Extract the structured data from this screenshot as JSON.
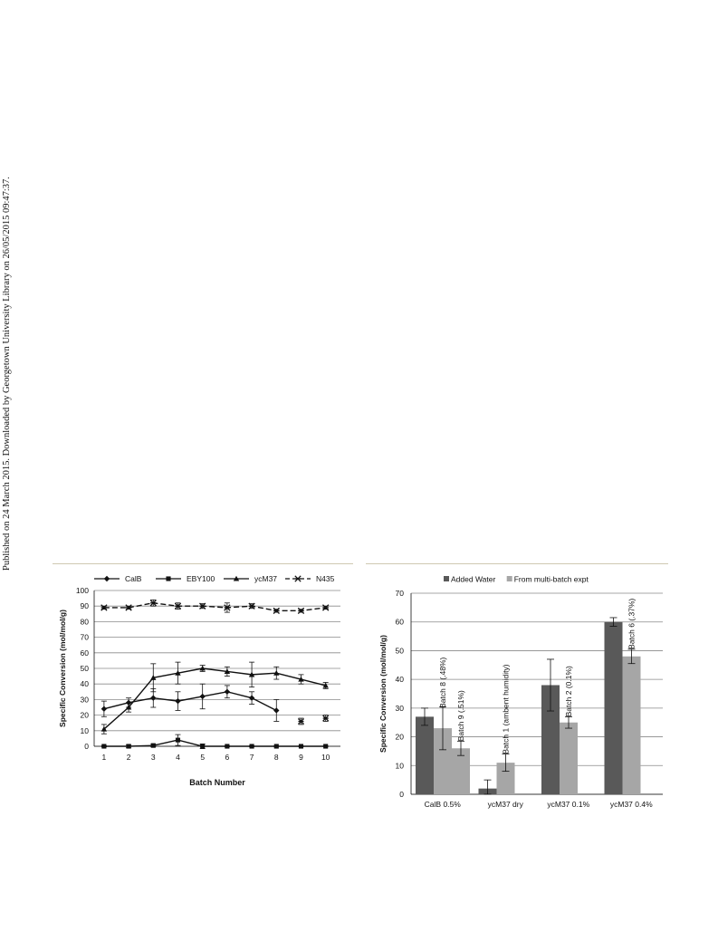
{
  "side_note": "Published on 24 March 2015. Downloaded by Georgetown University Library on 26/05/2015 09:47:37.",
  "chart_data": [
    {
      "type": "line",
      "xlabel": "Batch Number",
      "ylabel": "Specific Conversion (mol/mol/g)",
      "x": [
        1,
        2,
        3,
        4,
        5,
        6,
        7,
        8,
        9,
        10
      ],
      "xlim": [
        0.6,
        10.6
      ],
      "ylim": [
        0,
        100
      ],
      "yticks": [
        0,
        10,
        20,
        30,
        40,
        50,
        60,
        70,
        80,
        90,
        100
      ],
      "grid": "horizontal",
      "legend_position": "top",
      "series": [
        {
          "name": "CalB",
          "marker": "diamond",
          "line": "solid",
          "values": [
            24,
            28,
            31,
            29,
            32,
            35,
            31,
            23,
            null,
            null
          ],
          "errors": [
            5,
            3,
            6,
            6,
            8,
            4,
            4,
            7,
            null,
            null
          ]
        },
        {
          "name": "EBY100",
          "marker": "square",
          "line": "solid",
          "values": [
            0,
            0,
            0.5,
            4,
            0,
            0,
            0,
            0,
            0,
            0
          ],
          "errors": [
            0.4,
            1,
            0.8,
            3.5,
            1.5,
            0.3,
            0.3,
            0.2,
            0.2,
            0.2
          ]
        },
        {
          "name": "ycM37",
          "marker": "triangle",
          "line": "solid",
          "values": [
            11,
            25,
            44,
            47,
            50,
            48,
            46,
            47,
            43,
            39
          ],
          "errors": [
            3,
            3,
            9,
            7,
            2,
            3,
            8,
            4,
            3,
            2
          ]
        },
        {
          "name": "N435",
          "marker": "x-star",
          "line": "dashed",
          "values": [
            89,
            89,
            92,
            90,
            90,
            89,
            90,
            87,
            87,
            89
          ],
          "errors": [
            1,
            1,
            2,
            2,
            1.5,
            3,
            1.5,
            1,
            1,
            1
          ]
        }
      ],
      "extra_points": [
        {
          "x": 9,
          "y": 16,
          "error": 2
        },
        {
          "x": 10,
          "y": 18,
          "error": 2
        }
      ]
    },
    {
      "type": "bar",
      "ylabel": "Specific Conversion (mol/mol/g)",
      "categories": [
        "CalB 0.5%",
        "ycM37 dry",
        "ycM37 0.1%",
        "ycM37 0.4%"
      ],
      "ylim": [
        0,
        70
      ],
      "yticks": [
        0,
        10,
        20,
        30,
        40,
        50,
        60,
        70
      ],
      "grid": "horizontal",
      "legend_position": "top",
      "series": [
        {
          "name": "Added Water",
          "color": "#595959",
          "values": [
            27,
            2,
            38,
            60
          ],
          "errors": [
            3,
            3,
            9,
            1.5
          ]
        },
        {
          "name": "From multi-batch expt",
          "color": "#a6a6a6",
          "values": [
            23,
            11,
            25,
            48
          ],
          "errors": [
            7.5,
            3,
            2,
            2.5
          ]
        }
      ],
      "extra_bar": {
        "category_index": 0,
        "value": 16,
        "error": 2.5
      },
      "annotations": [
        {
          "text": "Batch 8 (.48%)",
          "category_index": 0,
          "slot": 1,
          "y": 30
        },
        {
          "text": "Batch 9 (.51%)",
          "category_index": 0,
          "slot": 2,
          "y": 18.5
        },
        {
          "text": "Batch 1 (ambent humidity)",
          "category_index": 1,
          "slot": 1,
          "y": 14
        },
        {
          "text": "Batch 2 (0.1%)",
          "category_index": 2,
          "slot": 1,
          "y": 27
        },
        {
          "text": "Batch 6 (.37%)",
          "category_index": 3,
          "slot": 1,
          "y": 50.5
        }
      ]
    }
  ]
}
